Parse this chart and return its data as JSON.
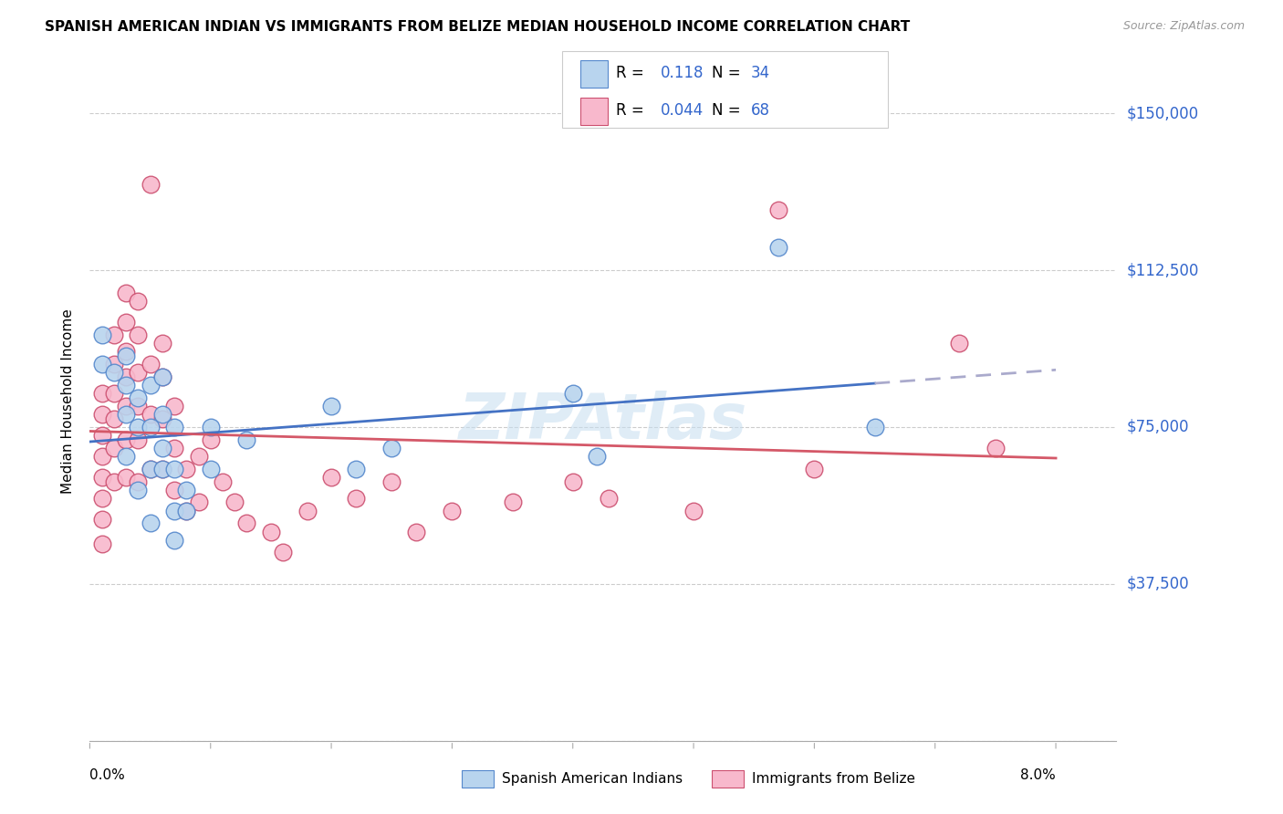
{
  "title": "SPANISH AMERICAN INDIAN VS IMMIGRANTS FROM BELIZE MEDIAN HOUSEHOLD INCOME CORRELATION CHART",
  "source": "Source: ZipAtlas.com",
  "ylabel": "Median Household Income",
  "ymin": 0,
  "ymax": 162500,
  "xmin": 0.0,
  "xmax": 0.085,
  "ytick_positions": [
    0,
    37500,
    75000,
    112500,
    150000
  ],
  "ytick_labels": [
    "",
    "$37,500",
    "$75,000",
    "$112,500",
    "$150,000"
  ],
  "xtick_positions": [
    0.0,
    0.01,
    0.02,
    0.03,
    0.04,
    0.05,
    0.06,
    0.07,
    0.08
  ],
  "watermark": "ZIPAtlas",
  "legend_label1": "Spanish American Indians",
  "legend_label2": "Immigrants from Belize",
  "blue_face": "#b8d4ee",
  "blue_edge": "#5588cc",
  "pink_face": "#f8b8cc",
  "pink_edge": "#cc5070",
  "blue_line": "#4472c4",
  "pink_line": "#d45868",
  "dash_color": "#aaaacc",
  "ytick_color": "#3366cc",
  "blue_x": [
    0.001,
    0.001,
    0.002,
    0.003,
    0.003,
    0.003,
    0.004,
    0.004,
    0.005,
    0.005,
    0.005,
    0.006,
    0.006,
    0.006,
    0.007,
    0.007,
    0.007,
    0.008,
    0.01,
    0.01,
    0.013,
    0.02,
    0.022,
    0.025,
    0.04,
    0.042,
    0.057,
    0.065,
    0.003,
    0.004,
    0.005,
    0.006,
    0.007,
    0.008
  ],
  "blue_y": [
    97000,
    90000,
    88000,
    92000,
    85000,
    78000,
    82000,
    75000,
    85000,
    75000,
    65000,
    87000,
    78000,
    65000,
    75000,
    65000,
    55000,
    60000,
    75000,
    65000,
    72000,
    80000,
    65000,
    70000,
    83000,
    68000,
    118000,
    75000,
    68000,
    60000,
    52000,
    70000,
    48000,
    55000
  ],
  "pink_x": [
    0.001,
    0.001,
    0.001,
    0.001,
    0.001,
    0.001,
    0.001,
    0.001,
    0.002,
    0.002,
    0.002,
    0.002,
    0.002,
    0.002,
    0.003,
    0.003,
    0.003,
    0.003,
    0.003,
    0.003,
    0.003,
    0.004,
    0.004,
    0.004,
    0.004,
    0.004,
    0.004,
    0.005,
    0.005,
    0.005,
    0.005,
    0.006,
    0.006,
    0.006,
    0.006,
    0.007,
    0.007,
    0.007,
    0.008,
    0.008,
    0.009,
    0.009,
    0.01,
    0.011,
    0.012,
    0.013,
    0.015,
    0.016,
    0.018,
    0.02,
    0.022,
    0.025,
    0.027,
    0.03,
    0.035,
    0.04,
    0.043,
    0.05,
    0.057,
    0.06,
    0.072,
    0.075
  ],
  "pink_y": [
    83000,
    78000,
    73000,
    68000,
    63000,
    58000,
    53000,
    47000,
    97000,
    90000,
    83000,
    77000,
    70000,
    62000,
    107000,
    100000,
    93000,
    87000,
    80000,
    72000,
    63000,
    105000,
    97000,
    88000,
    80000,
    72000,
    62000,
    133000,
    90000,
    78000,
    65000,
    95000,
    87000,
    77000,
    65000,
    80000,
    70000,
    60000,
    65000,
    55000,
    68000,
    57000,
    72000,
    62000,
    57000,
    52000,
    50000,
    45000,
    55000,
    63000,
    58000,
    62000,
    50000,
    55000,
    57000,
    62000,
    58000,
    55000,
    127000,
    65000,
    95000,
    70000
  ]
}
